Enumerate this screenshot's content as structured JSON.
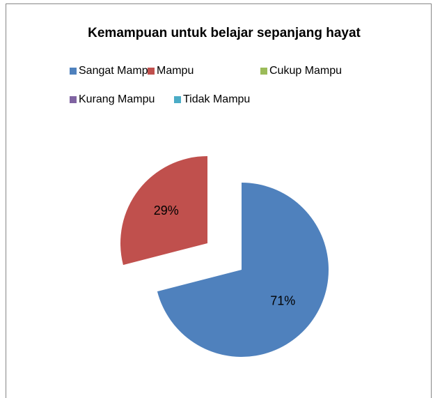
{
  "chart_data": {
    "type": "pie",
    "title": "Kemampuan untuk belajar sepanjang hayat",
    "categories": [
      "Sangat Mampu",
      "Mampu",
      "Cukup Mampu",
      "Kurang Mampu",
      "Tidak Mampu"
    ],
    "values": [
      71,
      29,
      0,
      0,
      0
    ],
    "value_labels": [
      "71%",
      "29%",
      null,
      null,
      null
    ],
    "colors": [
      "#4f81bd",
      "#c0504d",
      "#9bbb59",
      "#8064a2",
      "#4bacc6"
    ],
    "legend": "top"
  }
}
